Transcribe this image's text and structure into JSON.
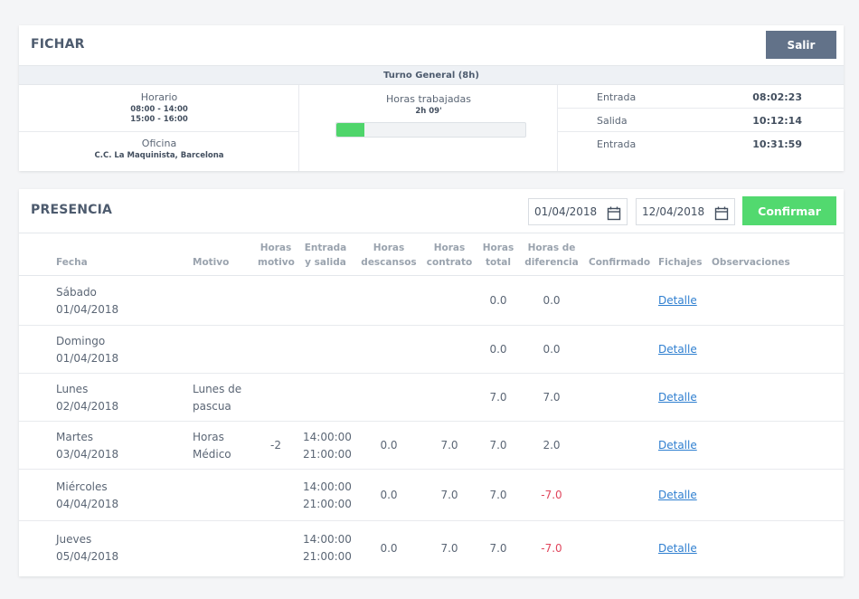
{
  "fichar": {
    "title": "FICHAR",
    "exit_label": "Salir",
    "shift": "Turno General (8h)",
    "schedule_label": "Horario",
    "schedule_line1": "08:00 - 14:00",
    "schedule_line2": "15:00 - 16:00",
    "office_label": "Oficina",
    "office_value": "C.C. La Maquinista, Barcelona",
    "worked_label": "Horas trabajadas",
    "worked_value": "2h 09'",
    "worked_progress": 0.15,
    "punches": [
      {
        "label": "Entrada",
        "time": "08:02:23"
      },
      {
        "label": "Salida",
        "time": "10:12:14"
      },
      {
        "label": "Entrada",
        "time": "10:31:59"
      }
    ]
  },
  "presencia": {
    "title": "PRESENCIA",
    "date_from": "01/04/2018",
    "date_to": "12/04/2018",
    "confirm_label": "Confirmar",
    "headers": {
      "fecha": "Fecha",
      "motivo": "Motivo",
      "horas_motivo_1": "Horas",
      "horas_motivo_2": "motivo",
      "entrada_1": "Entrada",
      "entrada_2": "y salida",
      "descansos_1": "Horas",
      "descansos_2": "descansos",
      "contrato_1": "Horas",
      "contrato_2": "contrato",
      "total_1": "Horas",
      "total_2": "total",
      "diferencia_1": "Horas de",
      "diferencia_2": "diferencia",
      "confirmado": "Confirmado",
      "fichajes": "Fichajes",
      "observaciones": "Observaciones"
    },
    "rows": [
      {
        "day": "Sábado",
        "date": "01/04/2018",
        "motivo1": "",
        "motivo2": "",
        "horas_motivo": "",
        "entrada": "",
        "salida": "",
        "descansos": "",
        "contrato": "",
        "total": "0.0",
        "diferencia": "0.0",
        "link": "Detalle"
      },
      {
        "day": "Domingo",
        "date": "01/04/2018",
        "motivo1": "",
        "motivo2": "",
        "horas_motivo": "",
        "entrada": "",
        "salida": "",
        "descansos": "",
        "contrato": "",
        "total": "0.0",
        "diferencia": "0.0",
        "link": "Detalle"
      },
      {
        "day": "Lunes",
        "date": "02/04/2018",
        "motivo1": "Lunes de",
        "motivo2": "pascua",
        "horas_motivo": "",
        "entrada": "",
        "salida": "",
        "descansos": "",
        "contrato": "",
        "total": "7.0",
        "diferencia": "7.0",
        "link": "Detalle"
      },
      {
        "day": "Martes",
        "date": "03/04/2018",
        "motivo1": "Horas",
        "motivo2": "Médico",
        "horas_motivo": "-2",
        "entrada": "14:00:00",
        "salida": "21:00:00",
        "descansos": "0.0",
        "contrato": "7.0",
        "total": "7.0",
        "diferencia": "2.0",
        "link": "Detalle"
      },
      {
        "day": "Miércoles",
        "date": "04/04/2018",
        "motivo1": "",
        "motivo2": "",
        "horas_motivo": "",
        "entrada": "14:00:00",
        "salida": "21:00:00",
        "descansos": "0.0",
        "contrato": "7.0",
        "total": "7.0",
        "diferencia": "-7.0",
        "link": "Detalle"
      },
      {
        "day": "Jueves",
        "date": "05/04/2018",
        "motivo1": "",
        "motivo2": "",
        "horas_motivo": "",
        "entrada": "14:00:00",
        "salida": "21:00:00",
        "descansos": "0.0",
        "contrato": "7.0",
        "total": "7.0",
        "diferencia": "-7.0",
        "link": "Detalle"
      }
    ]
  },
  "colors": {
    "accent_green": "#52d96f",
    "exit_button": "#627289",
    "negative": "#e0465d",
    "link": "#2f7fd0"
  }
}
